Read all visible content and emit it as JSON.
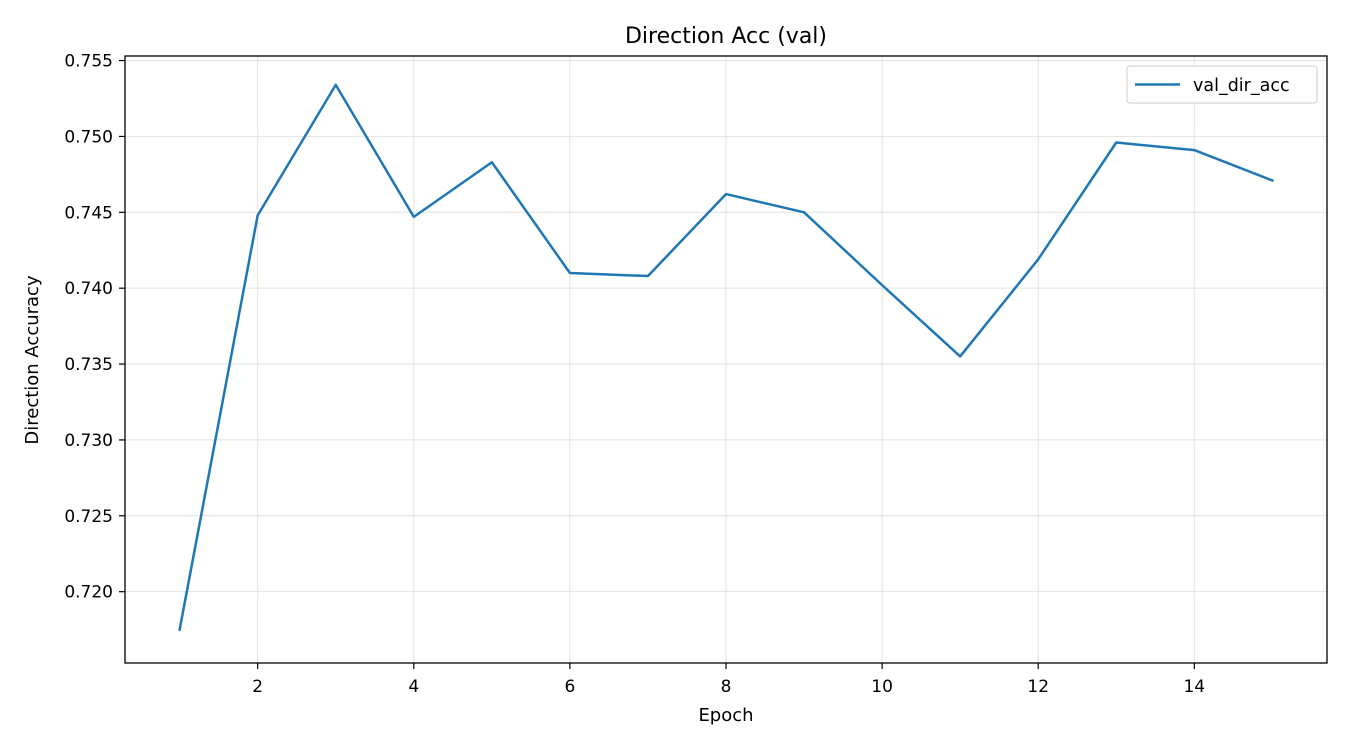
{
  "chart_data": {
    "type": "line",
    "title": "Direction Acc (val)",
    "xlabel": "Epoch",
    "ylabel": "Direction Accuracy",
    "xlim": [
      0.3,
      15.7
    ],
    "ylim": [
      0.7153,
      0.7553
    ],
    "xticks": [
      2,
      4,
      6,
      8,
      10,
      12,
      14
    ],
    "xtick_labels": [
      "2",
      "4",
      "6",
      "8",
      "10",
      "12",
      "14"
    ],
    "yticks": [
      0.72,
      0.725,
      0.73,
      0.735,
      0.74,
      0.745,
      0.75,
      0.755
    ],
    "ytick_labels": [
      "0.720",
      "0.725",
      "0.730",
      "0.735",
      "0.740",
      "0.745",
      "0.750",
      "0.755"
    ],
    "grid": true,
    "legend_position": "top-right",
    "series": [
      {
        "name": "val_dir_acc",
        "color": "#1f77b4",
        "x": [
          1,
          2,
          3,
          4,
          5,
          6,
          7,
          8,
          9,
          10,
          11,
          12,
          13,
          14,
          15
        ],
        "values": [
          0.7175,
          0.7448,
          0.7534,
          0.7447,
          0.7483,
          0.741,
          0.7408,
          0.7462,
          0.745,
          0.7402,
          0.7355,
          0.7419,
          0.7496,
          0.7491,
          0.7471
        ]
      }
    ]
  }
}
